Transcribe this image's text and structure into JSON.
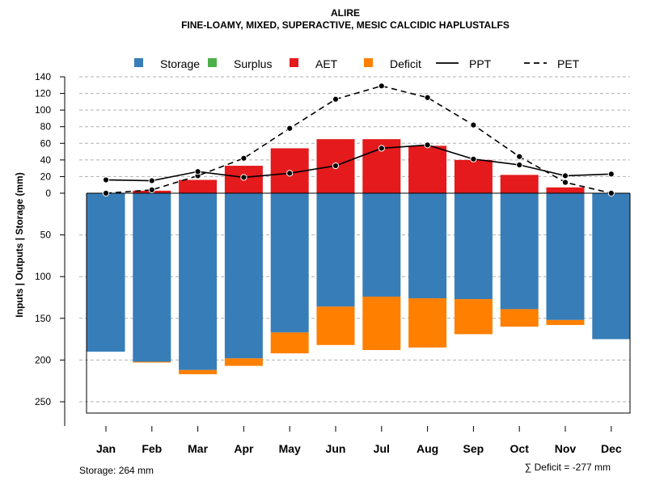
{
  "chart_data": {
    "type": "bar",
    "title": "ALIRE",
    "subtitle": "FINE-LOAMY, MIXED, SUPERACTIVE, MESIC CALCIDIC HAPLUSTALFS",
    "ylabel": "Inputs | Outputs | Storage    (mm)",
    "categories": [
      "Jan",
      "Feb",
      "Mar",
      "Apr",
      "May",
      "Jun",
      "Jul",
      "Aug",
      "Sep",
      "Oct",
      "Nov",
      "Dec"
    ],
    "upper_ticks": [
      "140",
      "120",
      "100",
      "80",
      "60",
      "40",
      "20",
      "0"
    ],
    "upper_tick_values": [
      140,
      120,
      100,
      80,
      60,
      40,
      20,
      0
    ],
    "lower_ticks": [
      "50",
      "100",
      "150",
      "200",
      "250"
    ],
    "lower_tick_values": [
      50,
      100,
      150,
      200,
      250
    ],
    "upper_ylim": [
      0,
      140
    ],
    "lower_ylim": [
      0,
      264
    ],
    "legend": [
      {
        "label": "Storage",
        "type": "box",
        "color": "#377EB8"
      },
      {
        "label": "Surplus",
        "type": "box",
        "color": "#4DAF4A"
      },
      {
        "label": "AET",
        "type": "box",
        "color": "#E41A1C"
      },
      {
        "label": "Deficit",
        "type": "box",
        "color": "#FF7F00"
      },
      {
        "label": "PPT",
        "type": "solid-line",
        "color": "#000000"
      },
      {
        "label": "PET",
        "type": "dashed-line",
        "color": "#000000"
      }
    ],
    "series": [
      {
        "name": "AET",
        "color": "#E41A1C",
        "values": [
          0,
          3,
          16,
          33,
          54,
          65,
          65,
          57,
          40,
          22,
          7,
          0
        ]
      },
      {
        "name": "Storage",
        "color": "#377EB8",
        "values": [
          190,
          202,
          212,
          198,
          167,
          136,
          124,
          126,
          127,
          139,
          152,
          175
        ]
      },
      {
        "name": "Deficit",
        "color": "#FF7F00",
        "values": [
          0,
          1,
          5,
          9,
          25,
          46,
          64,
          59,
          42,
          21,
          6,
          0
        ]
      },
      {
        "name": "PPT",
        "color": "#000000",
        "style": "solid",
        "values": [
          16,
          15,
          26,
          19,
          24,
          33,
          54,
          58,
          41,
          34,
          21,
          23
        ]
      },
      {
        "name": "PET",
        "color": "#000000",
        "style": "dashed",
        "values": [
          0,
          4,
          21,
          42,
          78,
          113,
          129,
          115,
          82,
          44,
          13,
          0
        ]
      }
    ],
    "storage_note": "Storage: 264 mm",
    "deficit_note": "∑ Deficit = -277 mm"
  }
}
